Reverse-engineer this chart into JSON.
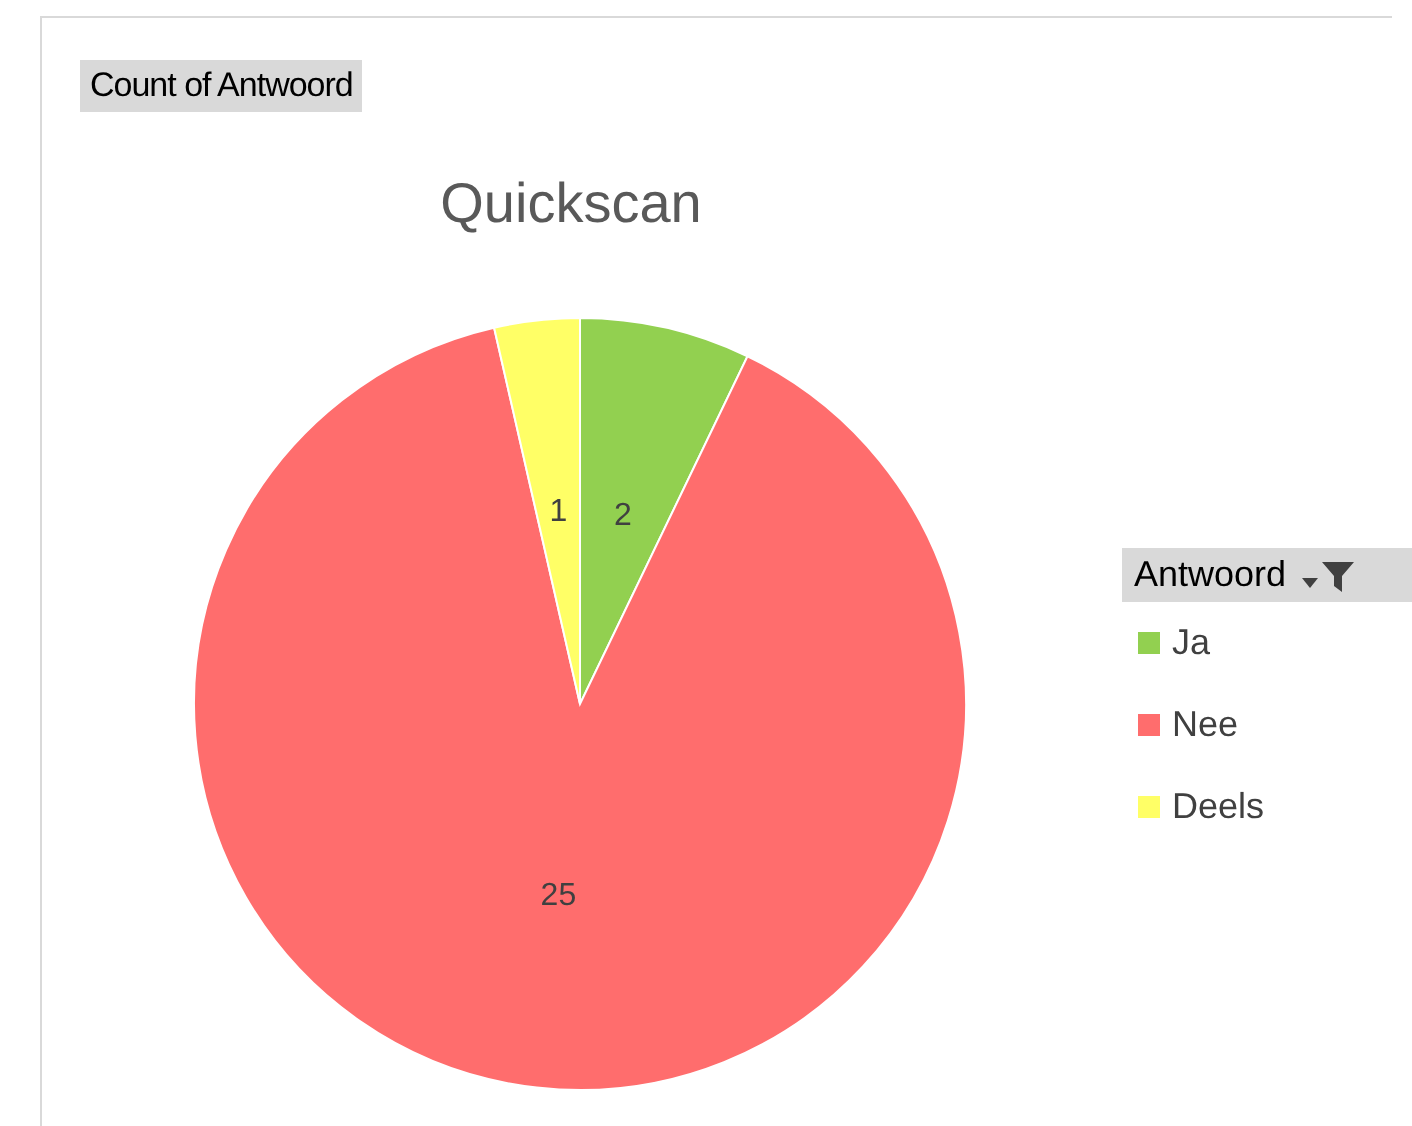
{
  "chart_data": {
    "type": "pie",
    "title": "Quickscan",
    "legend_title": "Antwoord",
    "annotations": [
      "Count of Antwoord"
    ],
    "categories": [
      "Ja",
      "Nee",
      "Deels"
    ],
    "values": [
      2,
      25,
      1
    ],
    "colors": [
      "#92d050",
      "#ff6d6d",
      "#ffff66"
    ],
    "data_labels": true,
    "legend": "right"
  }
}
